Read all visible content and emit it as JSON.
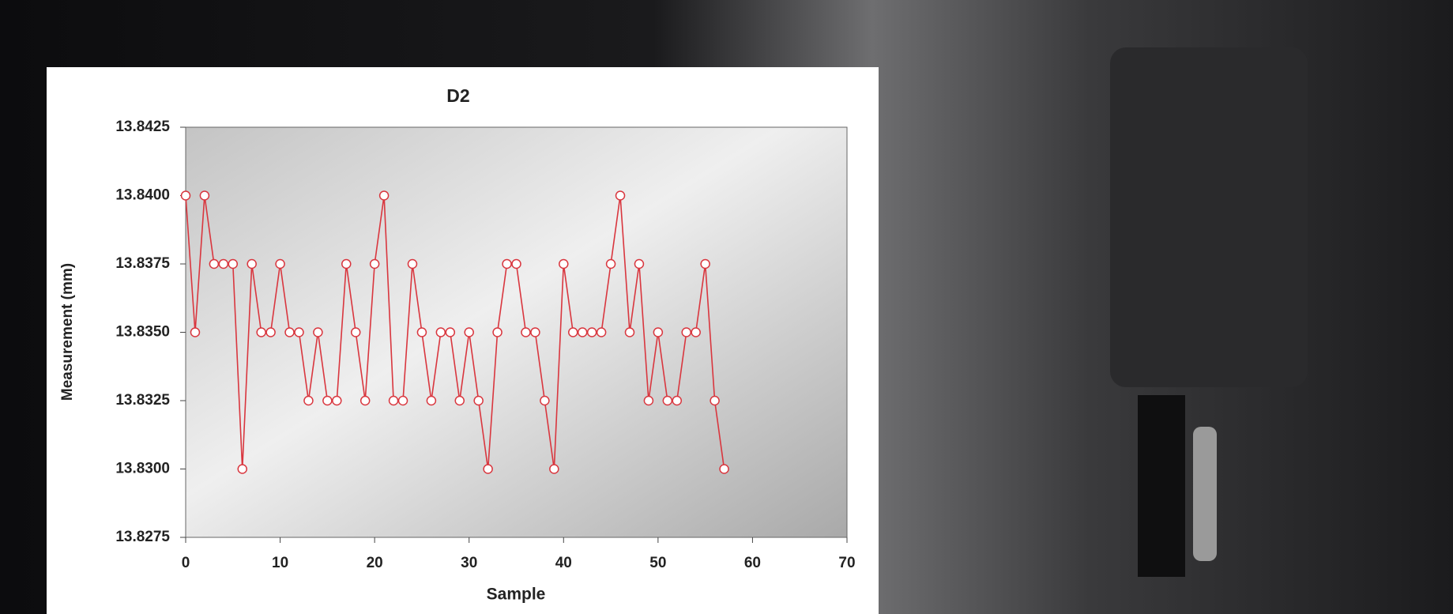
{
  "chart_data": {
    "type": "line",
    "title": "D2",
    "x_label": "Sample",
    "y_label": "Measurement (mm)",
    "x": [
      0,
      1,
      2,
      3,
      4,
      5,
      6,
      7,
      8,
      9,
      10,
      11,
      12,
      13,
      14,
      15,
      16,
      17,
      18,
      19,
      20,
      21,
      22,
      23,
      24,
      25,
      26,
      27,
      28,
      29,
      30,
      31,
      32,
      33,
      34,
      35,
      36,
      37,
      38,
      39,
      40,
      41,
      42,
      43,
      44,
      45,
      46,
      47,
      48,
      49,
      50,
      51,
      52,
      53,
      54,
      55,
      56,
      57
    ],
    "values": [
      13.84,
      13.835,
      13.84,
      13.8375,
      13.8375,
      13.8375,
      13.83,
      13.8375,
      13.835,
      13.835,
      13.8375,
      13.835,
      13.835,
      13.8325,
      13.835,
      13.8325,
      13.8325,
      13.8375,
      13.835,
      13.8325,
      13.8375,
      13.84,
      13.8325,
      13.8325,
      13.8375,
      13.835,
      13.8325,
      13.835,
      13.835,
      13.8325,
      13.835,
      13.8325,
      13.83,
      13.835,
      13.8375,
      13.8375,
      13.835,
      13.835,
      13.8325,
      13.83,
      13.8375,
      13.835,
      13.835,
      13.835,
      13.835,
      13.8375,
      13.84,
      13.835,
      13.8375,
      13.8325,
      13.835,
      13.8325,
      13.8325,
      13.835,
      13.835,
      13.8375,
      13.8325,
      13.83
    ],
    "color": "#d9363e",
    "xlim": [
      0,
      70
    ],
    "xticks": [
      0,
      10,
      20,
      30,
      40,
      50,
      60,
      70
    ],
    "ylim": [
      13.8275,
      13.8425
    ],
    "yticks": [
      13.8275,
      {
        "value": 13.83,
        "label": "13.8300"
      },
      13.8325,
      {
        "value": 13.835,
        "label": "13.8350"
      },
      13.8375,
      {
        "value": 13.84,
        "label": "13.8400"
      },
      13.8425
    ]
  }
}
